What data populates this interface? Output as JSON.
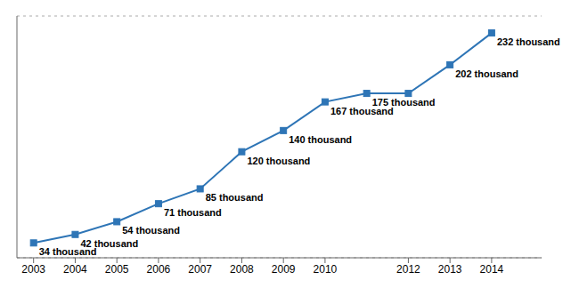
{
  "chart_data": {
    "type": "line",
    "x": [
      2003,
      2004,
      2005,
      2006,
      2007,
      2008,
      2009,
      2010,
      2011,
      2012,
      2013,
      2014
    ],
    "values": [
      34,
      42,
      54,
      71,
      85,
      120,
      140,
      167,
      175,
      175,
      202,
      232
    ],
    "value_labels": [
      "34 thousand",
      "42 thousand",
      "54 thousand",
      "71 thousand",
      "85 thousand",
      "120 thousand",
      "140 thousand",
      "167 thousand",
      "175 thousand",
      null,
      "202 thousand",
      "232 thousand"
    ],
    "data_labels": true,
    "color": "#2e75b6",
    "marker": "square",
    "xlim": [
      2002.6,
      2015.2
    ],
    "xticks": [
      2003,
      2004,
      2005,
      2006,
      2007,
      2008,
      2009,
      2010,
      2012,
      2013,
      2014
    ],
    "ylim": [
      20,
      248
    ],
    "yticks": [
      20,
      40,
      60,
      80,
      100,
      120,
      140,
      160,
      180,
      200,
      220,
      240
    ],
    "grid": true,
    "tick_labels": "x"
  }
}
